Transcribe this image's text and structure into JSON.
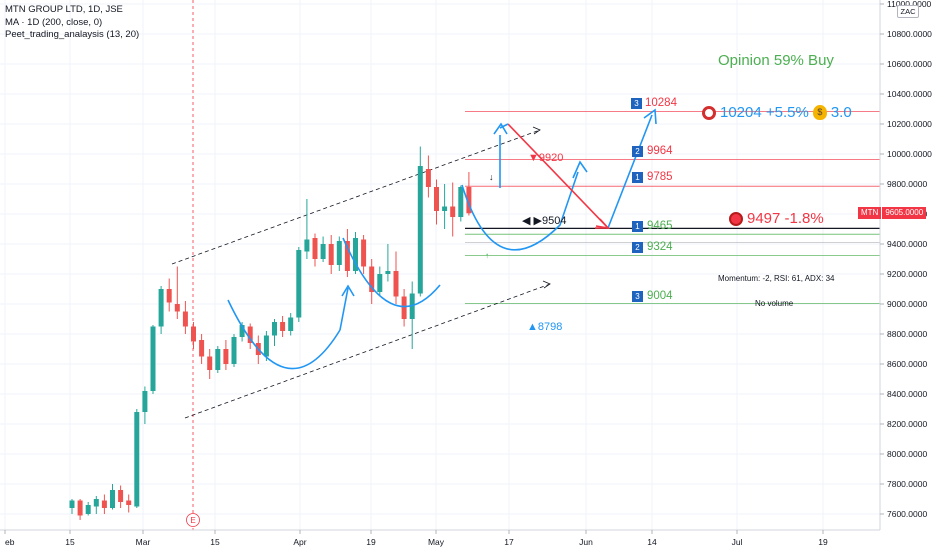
{
  "legend": {
    "symbol_line": "MTN GROUP LTD, 1D, JSE",
    "ma_line": "MA · 1D (200, close, 0)",
    "indicator_line": "Peet_trading_analaysis (13, 20)"
  },
  "currency_label": "ZAC",
  "opinion": "Opinion 59% Buy",
  "target_info": {
    "icon": "target-icon",
    "value": "10204 +5.5%",
    "bag_icon": "money-bag-icon",
    "ratio": "3.0"
  },
  "stop_info": {
    "icon": "red-dot-icon",
    "value": "9497 -1.8%"
  },
  "levels": [
    {
      "num": "3",
      "value": "10284",
      "color": "#f23645",
      "style": "red"
    },
    {
      "num": "2",
      "value": "9964",
      "color": "#f23645",
      "style": "red"
    },
    {
      "num": "1",
      "value": "9785",
      "color": "#f23645",
      "style": "red"
    },
    {
      "num": "1",
      "value": "9465",
      "color": "#4caf50",
      "style": "green"
    },
    {
      "num": "2",
      "value": "9324",
      "color": "#4caf50",
      "style": "green"
    },
    {
      "num": "3",
      "value": "9004",
      "color": "#4caf50",
      "style": "green"
    }
  ],
  "annotations": {
    "down_marker": "▼9920",
    "pivot_marker": "◀ ▶9504",
    "up_marker": "▲8798",
    "momentum": "Momentum: -2, RSI: 61, ADX: 34",
    "volume": "No volume",
    "earnings_marker": "E"
  },
  "price_badge": {
    "symbol": "MTN",
    "price": "9605.0000"
  },
  "price_axis": [
    "11000.0000",
    "10800.0000",
    "10600.0000",
    "10400.0000",
    "10200.0000",
    "10000.0000",
    "9800.0000",
    "9600.0000",
    "9400.0000",
    "9200.0000",
    "9000.0000",
    "8800.0000",
    "8600.0000",
    "8400.0000",
    "8200.0000",
    "8000.0000",
    "7800.0000",
    "7600.0000"
  ],
  "time_axis": [
    "eb",
    "15",
    "Mar",
    "15",
    "Apr",
    "19",
    "May",
    "17",
    "Jun",
    "14",
    "Jul",
    "19"
  ],
  "colors": {
    "up": "#26a69a",
    "down": "#ef5350",
    "projection": "#2196f3",
    "resistance": "#f23645",
    "support": "#4caf50"
  },
  "chart_data": {
    "type": "candlestick",
    "symbol": "MTN GROUP LTD",
    "interval": "1D",
    "exchange": "JSE",
    "ylim": [
      7500,
      11050
    ],
    "last_price": 9605,
    "candles": [
      {
        "o": 7640,
        "h": 7700,
        "l": 7600,
        "c": 7690
      },
      {
        "o": 7690,
        "h": 7700,
        "l": 7560,
        "c": 7590
      },
      {
        "o": 7600,
        "h": 7680,
        "l": 7590,
        "c": 7660
      },
      {
        "o": 7650,
        "h": 7720,
        "l": 7600,
        "c": 7700
      },
      {
        "o": 7690,
        "h": 7730,
        "l": 7600,
        "c": 7640
      },
      {
        "o": 7640,
        "h": 7800,
        "l": 7630,
        "c": 7760
      },
      {
        "o": 7760,
        "h": 7790,
        "l": 7640,
        "c": 7680
      },
      {
        "o": 7690,
        "h": 7730,
        "l": 7610,
        "c": 7660
      },
      {
        "o": 7650,
        "h": 8300,
        "l": 7640,
        "c": 8280
      },
      {
        "o": 8280,
        "h": 8450,
        "l": 8200,
        "c": 8420
      },
      {
        "o": 8420,
        "h": 8860,
        "l": 8400,
        "c": 8850
      },
      {
        "o": 8850,
        "h": 9120,
        "l": 8800,
        "c": 9100
      },
      {
        "o": 9100,
        "h": 9170,
        "l": 8950,
        "c": 9010
      },
      {
        "o": 9000,
        "h": 9250,
        "l": 8900,
        "c": 8950
      },
      {
        "o": 8950,
        "h": 9020,
        "l": 8800,
        "c": 8850
      },
      {
        "o": 8850,
        "h": 8880,
        "l": 8700,
        "c": 8750
      },
      {
        "o": 8760,
        "h": 8800,
        "l": 8600,
        "c": 8650
      },
      {
        "o": 8650,
        "h": 8700,
        "l": 8500,
        "c": 8560
      },
      {
        "o": 8560,
        "h": 8720,
        "l": 8540,
        "c": 8700
      },
      {
        "o": 8700,
        "h": 8760,
        "l": 8560,
        "c": 8600
      },
      {
        "o": 8600,
        "h": 8800,
        "l": 8580,
        "c": 8780
      },
      {
        "o": 8780,
        "h": 8880,
        "l": 8750,
        "c": 8860
      },
      {
        "o": 8850,
        "h": 8870,
        "l": 8700,
        "c": 8740
      },
      {
        "o": 8740,
        "h": 8790,
        "l": 8600,
        "c": 8660
      },
      {
        "o": 8650,
        "h": 8820,
        "l": 8620,
        "c": 8790
      },
      {
        "o": 8790,
        "h": 8900,
        "l": 8720,
        "c": 8880
      },
      {
        "o": 8880,
        "h": 8920,
        "l": 8780,
        "c": 8820
      },
      {
        "o": 8820,
        "h": 8940,
        "l": 8790,
        "c": 8910
      },
      {
        "o": 8910,
        "h": 9380,
        "l": 8880,
        "c": 9360
      },
      {
        "o": 9350,
        "h": 9700,
        "l": 9300,
        "c": 9430
      },
      {
        "o": 9440,
        "h": 9470,
        "l": 9250,
        "c": 9300
      },
      {
        "o": 9300,
        "h": 9450,
        "l": 9280,
        "c": 9400
      },
      {
        "o": 9400,
        "h": 9460,
        "l": 9200,
        "c": 9260
      },
      {
        "o": 9260,
        "h": 9450,
        "l": 9220,
        "c": 9420
      },
      {
        "o": 9420,
        "h": 9500,
        "l": 9180,
        "c": 9220
      },
      {
        "o": 9220,
        "h": 9480,
        "l": 9200,
        "c": 9440
      },
      {
        "o": 9430,
        "h": 9460,
        "l": 9200,
        "c": 9250
      },
      {
        "o": 9250,
        "h": 9300,
        "l": 9000,
        "c": 9080
      },
      {
        "o": 9080,
        "h": 9250,
        "l": 9050,
        "c": 9200
      },
      {
        "o": 9200,
        "h": 9400,
        "l": 9150,
        "c": 9220
      },
      {
        "o": 9220,
        "h": 9350,
        "l": 9000,
        "c": 9050
      },
      {
        "o": 9050,
        "h": 9100,
        "l": 8850,
        "c": 8900
      },
      {
        "o": 8900,
        "h": 9150,
        "l": 8700,
        "c": 9070
      },
      {
        "o": 9070,
        "h": 10050,
        "l": 9050,
        "c": 9920
      },
      {
        "o": 9900,
        "h": 9990,
        "l": 9710,
        "c": 9780
      },
      {
        "o": 9780,
        "h": 9830,
        "l": 9530,
        "c": 9620
      },
      {
        "o": 9620,
        "h": 9800,
        "l": 9500,
        "c": 9650
      },
      {
        "o": 9650,
        "h": 9810,
        "l": 9450,
        "c": 9580
      },
      {
        "o": 9580,
        "h": 9790,
        "l": 9550,
        "c": 9780
      },
      {
        "o": 9780,
        "h": 9880,
        "l": 9590,
        "c": 9605
      }
    ]
  }
}
